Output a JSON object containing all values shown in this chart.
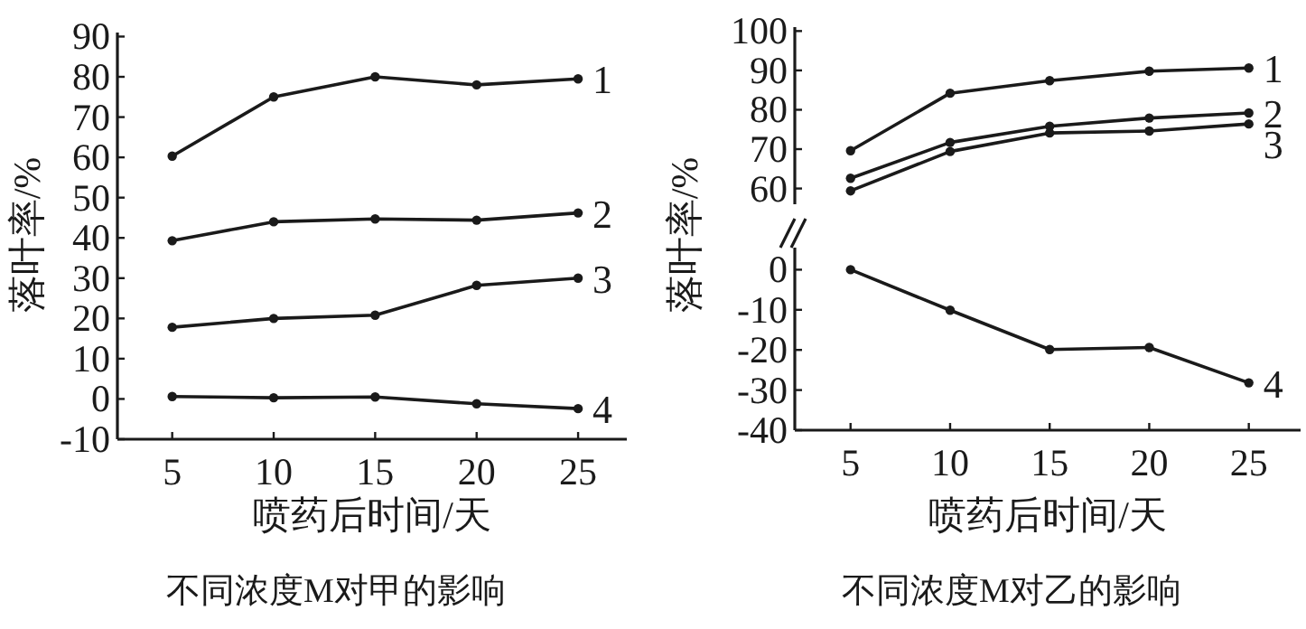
{
  "chart_data": [
    {
      "type": "line",
      "title": "不同浓度M对甲的影响",
      "xlabel": "喷药后时间/天",
      "ylabel": "落叶率/%",
      "x": [
        5,
        10,
        15,
        20,
        25
      ],
      "xlim": [
        2.3,
        27.4
      ],
      "xticks": [
        5,
        10,
        15,
        20,
        25
      ],
      "ylim": [
        -10,
        91
      ],
      "yticks": [
        -10,
        0,
        10,
        20,
        30,
        40,
        50,
        60,
        70,
        80,
        90
      ],
      "marker": "circle",
      "line_style": "solid",
      "series": [
        {
          "name": "1",
          "color": "#1a1a1a",
          "values": [
            60.3,
            75,
            80,
            78,
            79.5
          ]
        },
        {
          "name": "2",
          "color": "#1a1a1a",
          "values": [
            39.3,
            44,
            44.7,
            44.4,
            46.2
          ]
        },
        {
          "name": "3",
          "color": "#1a1a1a",
          "values": [
            17.8,
            20,
            20.8,
            28.2,
            30
          ]
        },
        {
          "name": "4",
          "color": "#1a1a1a",
          "values": [
            0.6,
            0.3,
            0.5,
            -1.2,
            -2.4
          ]
        }
      ]
    },
    {
      "type": "line",
      "ylabel": "落叶率/%",
      "x": [
        5,
        10,
        15,
        20,
        25
      ],
      "ylim": [
        56,
        101
      ],
      "yticks": [
        60,
        70,
        80,
        90,
        100
      ],
      "tick_labels": "y",
      "marker": "circle",
      "line_style": "solid",
      "series": [
        {
          "name": "1",
          "color": "#1a1a1a",
          "values": [
            69.6,
            84.2,
            87.4,
            89.8,
            90.6
          ]
        },
        {
          "name": "2",
          "color": "#1a1a1a",
          "values": [
            62.6,
            71.7,
            75.8,
            77.9,
            79.2
          ]
        },
        {
          "name": "3",
          "color": "#1a1a1a",
          "values": [
            59.4,
            69.4,
            74.1,
            74.6,
            76.4
          ]
        }
      ]
    },
    {
      "type": "line",
      "title": "不同浓度M对乙的影响",
      "xlabel": "喷药后时间/天",
      "x": [
        5,
        10,
        15,
        20,
        25
      ],
      "xlim": [
        2.2,
        27.6
      ],
      "xticks": [
        5,
        10,
        15,
        20,
        25
      ],
      "ylim": [
        -40,
        5.5
      ],
      "yticks": [
        -40,
        -30,
        -20,
        -10,
        0
      ],
      "marker": "circle",
      "line_style": "solid",
      "series": [
        {
          "name": "4",
          "color": "#1a1a1a",
          "values": [
            0,
            -10.1,
            -19.9,
            -19.4,
            -28.2
          ]
        }
      ]
    }
  ]
}
